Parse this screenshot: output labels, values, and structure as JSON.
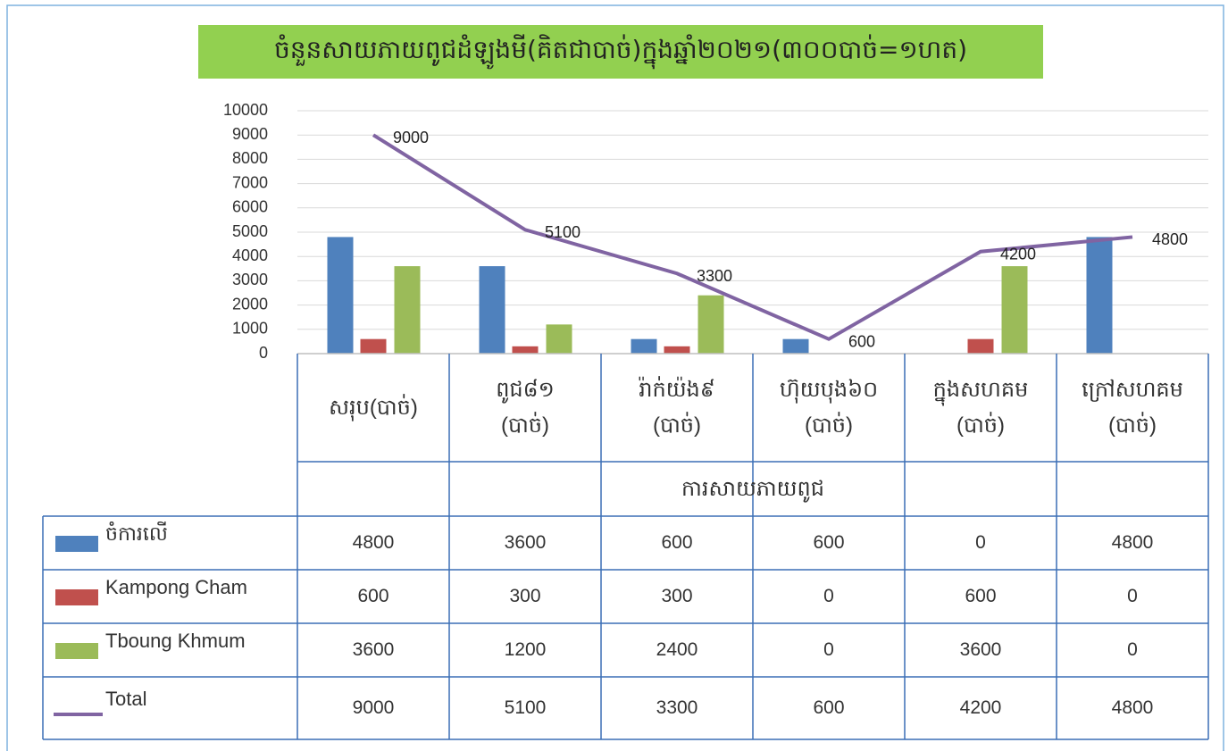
{
  "chart_data": {
    "type": "bar",
    "title": "ចំនួនសាយភាយពូជដំឡូងមី(គិតជាបាច់)ក្នុងឆ្នាំ២០២១(៣០០បាច់=១ហត)",
    "x_label": "ការសាយភាយពូជ",
    "categories": [
      "សរុប(បាច់)",
      "ពូជ៨១\n(បាច់)",
      "រ៉ាក់យ៉ង៩\n(បាច់)",
      "ហ៊ុយបុង៦០\n(បាច់)",
      "ក្នុងសហគម\n(បាច់)",
      "ក្រៅសហគម\n(បាច់)"
    ],
    "series": [
      {
        "name": "ចំការលើ",
        "type": "bar",
        "color": "#4f81bd",
        "values": [
          4800,
          3600,
          600,
          600,
          0,
          4800
        ]
      },
      {
        "name": "Kampong Cham",
        "type": "bar",
        "color": "#c0504d",
        "values": [
          600,
          300,
          300,
          0,
          600,
          0
        ]
      },
      {
        "name": "Tboung Khmum",
        "type": "bar",
        "color": "#9bbb59",
        "values": [
          3600,
          1200,
          2400,
          0,
          3600,
          0
        ]
      },
      {
        "name": "Total",
        "type": "line",
        "color": "#8064a2",
        "values": [
          9000,
          5100,
          3300,
          600,
          4200,
          4800
        ]
      }
    ],
    "ylim": [
      0,
      10000
    ],
    "yticks": [
      0,
      1000,
      2000,
      3000,
      4000,
      5000,
      6000,
      7000,
      8000,
      9000,
      10000
    ],
    "grid": true,
    "data_table": true
  }
}
